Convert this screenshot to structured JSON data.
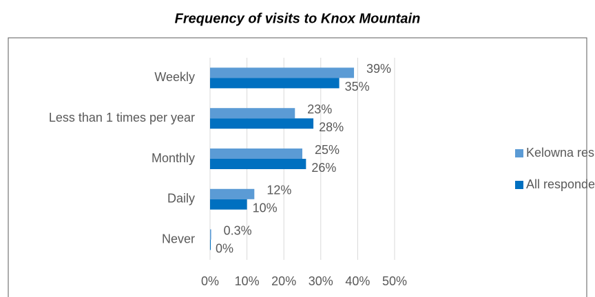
{
  "chart_data": {
    "type": "bar",
    "orientation": "horizontal",
    "title": "Frequency of visits to Knox Mountain",
    "categories": [
      "Weekly",
      "Less than 1 times per year",
      "Monthly",
      "Daily",
      "Never"
    ],
    "series": [
      {
        "name": "Kelowna residents",
        "color": "#5b9bd5",
        "values": [
          39,
          23,
          25,
          12,
          0.3
        ],
        "value_labels": [
          "39%",
          "23%",
          "25%",
          "12%",
          "0.3%"
        ]
      },
      {
        "name": "All respondents",
        "color": "#0070c0",
        "values": [
          35,
          28,
          26,
          10,
          0
        ],
        "value_labels": [
          "35%",
          "28%",
          "26%",
          "10%",
          "0%"
        ]
      }
    ],
    "xlim": [
      0,
      50
    ],
    "xticks": [
      {
        "value": 0,
        "label": "0%"
      },
      {
        "value": 10,
        "label": "10%"
      },
      {
        "value": 20,
        "label": "20%"
      },
      {
        "value": 30,
        "label": "30%"
      },
      {
        "value": 40,
        "label": "40%"
      },
      {
        "value": 50,
        "label": "50%"
      }
    ],
    "grid": true,
    "legend": "right"
  }
}
